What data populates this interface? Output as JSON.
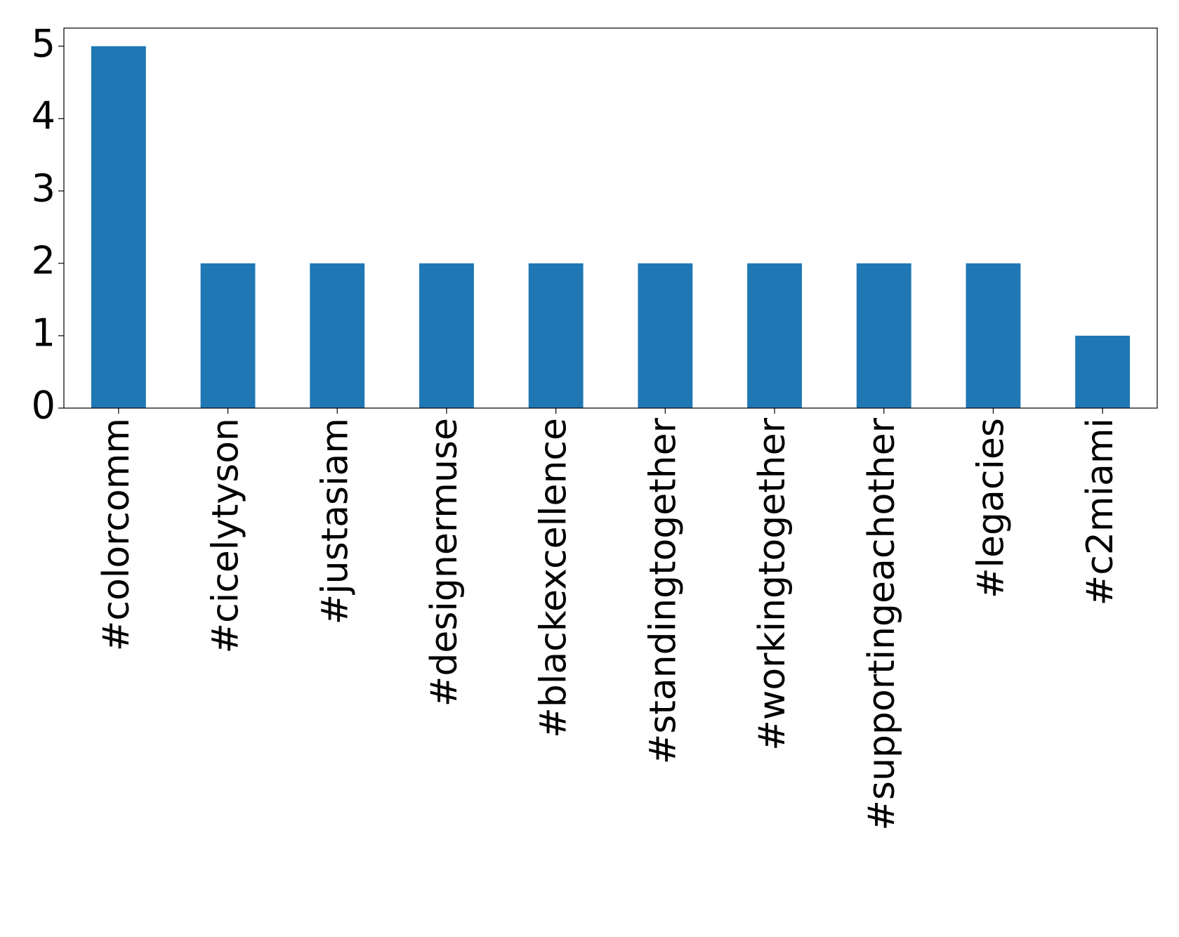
{
  "chart_data": {
    "type": "bar",
    "categories": [
      "#colorcomm",
      "#cicelytyson",
      "#justasiam",
      "#designermuse",
      "#blackexcellence",
      "#standingtogether",
      "#workingtogether",
      "#supportingeachother",
      "#legacies",
      "#c2miami"
    ],
    "values": [
      5,
      2,
      2,
      2,
      2,
      2,
      2,
      2,
      2,
      1
    ],
    "color": "#1f77b4",
    "ylim": [
      0,
      5.25
    ],
    "yticks": [
      0,
      1,
      2,
      3,
      4,
      5
    ],
    "grid": false
  }
}
